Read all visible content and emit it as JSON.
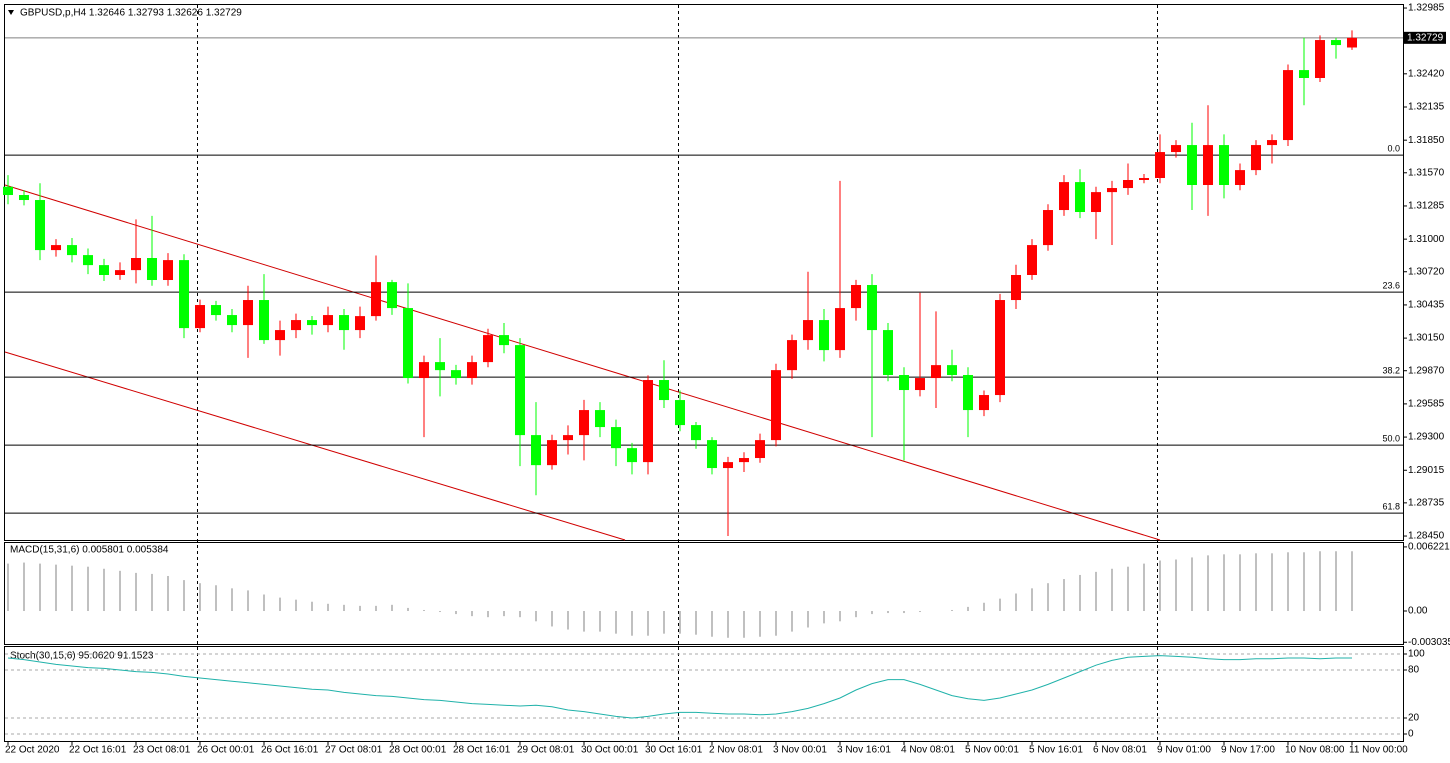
{
  "chart_data": [
    {
      "type": "candlestick",
      "header": "GBPUSD,p,H4  1.32646 1.32793 1.32626 1.32729",
      "categories": [
        "22 Oct 2020",
        null,
        null,
        null,
        "22 Oct 16:01",
        null,
        null,
        null,
        "23 Oct 08:01",
        null,
        null,
        null,
        "26 Oct 00:01",
        null,
        null,
        null,
        "26 Oct 16:01",
        null,
        null,
        null,
        "27 Oct 08:01",
        null,
        null,
        null,
        "28 Oct 00:01",
        null,
        null,
        null,
        "28 Oct 16:01",
        null,
        null,
        null,
        "29 Oct 08:01",
        null,
        null,
        null,
        "30 Oct 00:01",
        null,
        null,
        null,
        "30 Oct 16:01",
        null,
        null,
        null,
        "2 Nov 08:01",
        null,
        null,
        null,
        "3 Nov 00:01",
        null,
        null,
        null,
        "3 Nov 16:01",
        null,
        null,
        null,
        "4 Nov 08:01",
        null,
        null,
        null,
        "5 Nov 00:01",
        null,
        null,
        null,
        "5 Nov 16:01",
        null,
        null,
        null,
        "6 Nov 08:01",
        null,
        null,
        null,
        "9 Nov 01:00",
        null,
        null,
        null,
        "9 Nov 17:00",
        null,
        null,
        null,
        "10 Nov 08:00",
        null,
        null,
        null,
        "11 Nov 00:00"
      ],
      "open": [
        1.3145,
        1.31379,
        1.31336,
        1.30906,
        1.30949,
        1.30863,
        1.30777,
        1.30692,
        1.30734,
        1.30838,
        1.30649,
        1.3082,
        1.30236,
        1.30434,
        1.30348,
        1.30262,
        1.30477,
        1.30133,
        1.30219,
        1.30305,
        1.30262,
        1.30348,
        1.30219,
        1.30339,
        1.30631,
        1.30408,
        1.29807,
        1.29944,
        1.29875,
        1.29807,
        1.29944,
        1.30176,
        1.3009,
        1.29317,
        1.29059,
        1.29274,
        1.29317,
        1.29532,
        1.29386,
        1.29205,
        1.29085,
        1.2979,
        1.29618,
        1.29403,
        1.29274,
        1.29034,
        1.29085,
        1.2912,
        1.29274,
        1.29875,
        1.30133,
        1.30305,
        1.30047,
        1.30408,
        1.30606,
        1.30219,
        1.29833,
        1.29704,
        1.29807,
        1.29918,
        1.29833,
        1.29532,
        1.29661,
        1.30477,
        1.30692,
        1.30949,
        1.3125,
        1.3149,
        1.31233,
        1.31404,
        1.31439,
        1.31508,
        1.31525,
        1.31748,
        1.31808,
        1.31465,
        1.31808,
        1.31465,
        1.31593,
        1.31808,
        1.31851,
        1.32452,
        1.32384,
        1.3271,
        1.32646
      ],
      "high": [
        1.3155,
        1.3142,
        1.3148,
        1.31,
        1.3101,
        1.3092,
        1.3083,
        1.308,
        1.3117,
        1.312,
        1.3088,
        1.3087,
        1.3048,
        1.3047,
        1.304,
        1.306,
        1.307,
        1.303,
        1.3036,
        1.3034,
        1.3042,
        1.304,
        1.3042,
        1.3086,
        1.3065,
        1.3062,
        1.3,
        1.3015,
        1.2992,
        1.3,
        1.3023,
        1.3028,
        1.3015,
        1.296,
        1.2932,
        1.294,
        1.2962,
        1.296,
        1.2945,
        1.2925,
        1.2983,
        1.2996,
        1.297,
        1.2943,
        1.293,
        1.2913,
        1.2917,
        1.2933,
        1.2993,
        1.3018,
        1.3072,
        1.304,
        1.315,
        1.3065,
        1.307,
        1.3028,
        1.299,
        1.3054,
        1.3038,
        1.3005,
        1.299,
        1.297,
        1.3053,
        1.3078,
        1.31,
        1.313,
        1.3155,
        1.316,
        1.3145,
        1.315,
        1.3165,
        1.3156,
        1.319,
        1.3185,
        1.32,
        1.3215,
        1.319,
        1.3165,
        1.3185,
        1.319,
        1.325,
        1.3273,
        1.3275,
        1.3273,
        1.32793
      ],
      "low": [
        1.313,
        1.3129,
        1.3082,
        1.3085,
        1.308,
        1.307,
        1.3064,
        1.3065,
        1.3062,
        1.306,
        1.306,
        1.3015,
        1.302,
        1.303,
        1.302,
        1.2998,
        1.301,
        1.3,
        1.3015,
        1.3018,
        1.302,
        1.3005,
        1.3015,
        1.303,
        1.3035,
        1.2976,
        1.293,
        1.2965,
        1.2975,
        1.2975,
        1.299,
        1.3002,
        1.2905,
        1.288,
        1.2902,
        1.2915,
        1.291,
        1.293,
        1.2905,
        1.2898,
        1.2898,
        1.2955,
        1.2935,
        1.292,
        1.2898,
        1.2845,
        1.29,
        1.2908,
        1.2922,
        1.298,
        1.3005,
        1.2995,
        1.2998,
        1.303,
        1.293,
        1.2978,
        1.291,
        1.2965,
        1.2955,
        1.2978,
        1.293,
        1.2948,
        1.296,
        1.304,
        1.3065,
        1.309,
        1.312,
        1.3118,
        1.31,
        1.3095,
        1.3138,
        1.3148,
        1.3148,
        1.317,
        1.3125,
        1.312,
        1.3135,
        1.3142,
        1.3155,
        1.3165,
        1.318,
        1.3215,
        1.3235,
        1.3255,
        1.32626
      ],
      "close": [
        1.31379,
        1.31336,
        1.30906,
        1.30949,
        1.30863,
        1.30777,
        1.30692,
        1.30734,
        1.30838,
        1.30649,
        1.3082,
        1.30236,
        1.30434,
        1.30348,
        1.30262,
        1.30477,
        1.30133,
        1.30219,
        1.30305,
        1.30262,
        1.30348,
        1.30219,
        1.30339,
        1.30631,
        1.30408,
        1.29807,
        1.29944,
        1.29875,
        1.29807,
        1.29944,
        1.30176,
        1.3009,
        1.29317,
        1.29059,
        1.29274,
        1.29317,
        1.29532,
        1.29386,
        1.29205,
        1.29085,
        1.2979,
        1.29618,
        1.29403,
        1.29274,
        1.29034,
        1.29085,
        1.2912,
        1.29274,
        1.29875,
        1.30133,
        1.30305,
        1.30047,
        1.30408,
        1.30606,
        1.30219,
        1.29833,
        1.29704,
        1.29807,
        1.29918,
        1.29833,
        1.29532,
        1.29661,
        1.30477,
        1.30692,
        1.30949,
        1.3125,
        1.3149,
        1.31233,
        1.31404,
        1.31439,
        1.31508,
        1.31525,
        1.31748,
        1.31808,
        1.31465,
        1.31808,
        1.31465,
        1.31593,
        1.31808,
        1.31851,
        1.32452,
        1.32384,
        1.3271,
        1.32667,
        1.32729
      ],
      "up_color": "#ff0000",
      "down_color": "#00ff00",
      "ylim": [
        1.28416,
        1.33011
      ],
      "yticks": [
        {
          "value": 1.32985,
          "label": "1.32985"
        },
        {
          "value": 1.3242,
          "label": "1.32420"
        },
        {
          "value": 1.32135,
          "label": "1.32135"
        },
        {
          "value": 1.3185,
          "label": "1.31850"
        },
        {
          "value": 1.3157,
          "label": "1.31570"
        },
        {
          "value": 1.31285,
          "label": "1.31285"
        },
        {
          "value": 1.31,
          "label": "1.31000"
        },
        {
          "value": 1.3072,
          "label": "1.30720"
        },
        {
          "value": 1.30435,
          "label": "1.30435"
        },
        {
          "value": 1.3015,
          "label": "1.30150"
        },
        {
          "value": 1.2987,
          "label": "1.29870"
        },
        {
          "value": 1.29585,
          "label": "1.29585"
        },
        {
          "value": 1.293,
          "label": "1.29300"
        },
        {
          "value": 1.29015,
          "label": "1.29015"
        },
        {
          "value": 1.28735,
          "label": "1.28735"
        },
        {
          "value": 1.2845,
          "label": "1.28450"
        }
      ],
      "fib_levels": [
        {
          "value": 1.31722,
          "label": "0.0"
        },
        {
          "value": 1.30545,
          "label": "23.6"
        },
        {
          "value": 1.29815,
          "label": "38.2"
        },
        {
          "value": 1.29231,
          "label": "50.0"
        },
        {
          "value": 1.28647,
          "label": "61.8"
        }
      ],
      "current_price": 1.32729
    },
    {
      "type": "bar",
      "title": "MACD(15,31,6) 0.005801 0.005384",
      "color": "#c0c0c0",
      "values": [
        0.0046,
        0.0047,
        0.0046,
        0.0045,
        0.0044,
        0.0043,
        0.0041,
        0.0039,
        0.0037,
        0.0036,
        0.0034,
        0.003,
        0.0027,
        0.0025,
        0.0022,
        0.002,
        0.0016,
        0.0013,
        0.0011,
        0.0009,
        0.0007,
        0.0006,
        0.0005,
        0.0005,
        0.0006,
        0.0003,
        0.0001,
        -0.0001,
        -0.0003,
        -0.0005,
        -0.0006,
        -0.0005,
        -0.0006,
        -0.001,
        -0.0015,
        -0.0018,
        -0.002,
        -0.002,
        -0.0022,
        -0.0024,
        -0.0024,
        -0.0022,
        -0.0022,
        -0.0023,
        -0.0025,
        -0.0026,
        -0.0026,
        -0.0025,
        -0.0024,
        -0.002,
        -0.0016,
        -0.0012,
        -0.001,
        -0.0006,
        -0.0003,
        -0.0002,
        -0.0002,
        -0.0001,
        0,
        0.0001,
        0.0004,
        0.0008,
        0.0012,
        0.0017,
        0.0022,
        0.0027,
        0.0031,
        0.0035,
        0.0038,
        0.0041,
        0.0043,
        0.0046,
        0.0049,
        0.005,
        0.0052,
        0.0054,
        0.0055,
        0.0055,
        0.0056,
        0.0056,
        0.0057,
        0.0057,
        0.0058,
        0.0058,
        0.0058
      ],
      "ylim": [
        -0.0033,
        0.0066
      ],
      "yticks": [
        0.006221,
        {
          "value": 0,
          "label": "0.00"
        },
        -0.003035
      ]
    },
    {
      "type": "line",
      "title": "Stoch(30,15,6) 95.0620 91.1523",
      "color": "#20b2aa",
      "values": [
        95,
        93,
        90,
        87,
        85,
        83,
        82,
        80,
        78,
        77,
        75,
        72,
        70,
        68,
        66,
        64,
        62,
        60,
        58,
        56,
        55,
        52,
        50,
        48,
        47,
        45,
        43,
        42,
        40,
        38,
        37,
        36,
        35,
        36,
        34,
        30,
        28,
        25,
        22,
        20,
        22,
        25,
        27,
        27,
        26,
        25,
        25,
        24,
        25,
        28,
        32,
        38,
        45,
        55,
        63,
        68,
        68,
        62,
        55,
        48,
        44,
        42,
        45,
        50,
        55,
        62,
        70,
        78,
        86,
        92,
        96,
        97,
        98,
        97,
        96,
        94,
        93,
        93,
        94,
        94,
        95,
        95,
        94,
        95,
        95
      ],
      "ylim": [
        -8.75,
        108.75
      ],
      "yticks": [
        100,
        80,
        20,
        0
      ]
    }
  ]
}
